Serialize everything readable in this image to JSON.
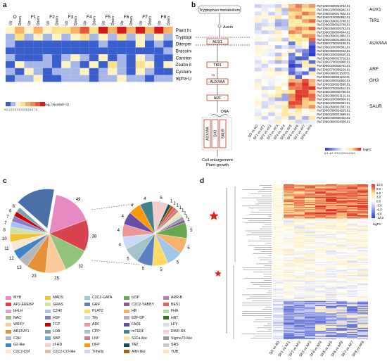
{
  "panel_labels": [
    "a",
    "b",
    "c",
    "d"
  ],
  "a": {
    "groups": [
      "O",
      "F1",
      "F2",
      "F3",
      "F4",
      "F5",
      "F6",
      "F7",
      "F8"
    ],
    "direction_labels": [
      "Up",
      "Down"
    ],
    "pathways": [
      "Plant hormone signal transduction",
      "Tryptophan metabolism",
      "Diterpenoid biosynthesis",
      "Brassinosteroid biosynthesis",
      "Carotenoid biosynthesis",
      "Zeatin biosynthesis",
      "Cysteine and methionine metabolism",
      "alpha-Linolenic acid metabolism"
    ],
    "legend_ticks": "0.0 1.0 2.0 3.0 4.0 5.0 6.0 7.0",
    "legend_title": "log₂ (Number+1)"
  },
  "b": {
    "pathway_title": "Tryptophan metabolism",
    "nodes": [
      "Auxin",
      "AUX1",
      "TIR1",
      "AUX/IAA",
      "ARF",
      "DNA",
      "AUX/IAA",
      "GH3",
      "SAUR"
    ],
    "ub": "+u",
    "outcome": [
      "Cell enlargement",
      "Plant growth"
    ],
    "gene_ids": [
      "PaF106G0600024754.01",
      "PaF106G0200009942.01",
      "PaF106G0400017932.01",
      "PaF106G0100000562.01",
      "PaF106G0500013748.01",
      "PaF106G0300013749.01",
      "PaF106G0500029753.01",
      "PaF106G0300004644.01",
      "PaF106G0500013863.01",
      "PaF106G0400013934.01",
      "PaF106G0700026198.01",
      "PaF106G0200005581.01",
      "PaF106G0800029316.01",
      "PaF106G0200026630.01",
      "PaF106G0400017716.01",
      "PaF106G0700019948.01",
      "PaF106G0200026752.01",
      "PaF106G0700009229.01",
      "PaF106G0400011828.01",
      "PaF106G0400031102.01",
      "PaF106G0400016604.01",
      "PaF106G0200023590.01",
      "PaF106G0700026812.01",
      "PaF106G0300030766.01",
      "PaF106G0800013121.01",
      "PaF106G0200008604.01",
      "PaF106G0200009391.01",
      "PaF106G0500031587.01",
      "PaF106G0300014203.01",
      "PaF106G0200031599.01",
      "PaF106G0400035402.01",
      "PaF106G0600024309.01"
    ],
    "gene_groups": [
      "AUX1",
      "TIR1",
      "AUX/IAA",
      "ARF",
      "GH3",
      "SAUR"
    ],
    "columns": [
      "SO vs AO",
      "SF1 vs AF1",
      "SF2 vs AF2",
      "SF3 vs AF3",
      "SF4 vs AF4",
      "SF5 vs AF5",
      "SF6 vs AF6",
      "SF7 vs AF7",
      "SF8 vs AF8"
    ],
    "legend_ticks": "-6.0 -4.0 -2.0 0.0 2.0 4.0 6.0",
    "legend_title": "logFC"
  },
  "c": {
    "left_pie_labels": [
      "49",
      "38",
      "32",
      "25",
      "23",
      "13",
      "12",
      "11",
      "10",
      "8",
      "7",
      "7",
      "6",
      "6"
    ],
    "right_pie_labels": [
      "5",
      "5",
      "5",
      "5",
      "5",
      "5",
      "4",
      "4",
      "4",
      "4",
      "4",
      "5",
      "1",
      "1",
      "1",
      "1",
      "1",
      "1",
      "1",
      "1"
    ],
    "legend": [
      {
        "name": "MYB",
        "color": "#e78ac3"
      },
      {
        "name": "MADS",
        "color": "#f1c232"
      },
      {
        "name": "C2C2-GATA",
        "color": "#9fc5e8"
      },
      {
        "name": "bZIP",
        "color": "#6aa84f"
      },
      {
        "name": "ARR-B",
        "color": "#c27ba0"
      },
      {
        "name": "AP2-EREBP",
        "color": "#d9434f"
      },
      {
        "name": "GRAS",
        "color": "#cfe2a0"
      },
      {
        "name": "GRF",
        "color": "#5b7fbf"
      },
      {
        "name": "C2C2-YABBY",
        "color": "#8a5a9e"
      },
      {
        "name": "BES1",
        "color": "#e06666"
      },
      {
        "name": "bHLH",
        "color": "#d5a6bd"
      },
      {
        "name": "C2H2",
        "color": "#a4c2f4"
      },
      {
        "name": "PLATZ",
        "color": "#ffd966"
      },
      {
        "name": "HB",
        "color": "#f6b26b"
      },
      {
        "name": "FHA",
        "color": "#b6d7a8"
      },
      {
        "name": "NAC",
        "color": "#93c47d"
      },
      {
        "name": "HSF",
        "color": "#8e7cc3"
      },
      {
        "name": "Tify",
        "color": "#c9daf8"
      },
      {
        "name": "E2F-DP",
        "color": "#b4a7d6"
      },
      {
        "name": "HRT",
        "color": "#38761d"
      },
      {
        "name": "WRKY",
        "color": "#f9cb9c"
      },
      {
        "name": "TCP",
        "color": "#cc0000"
      },
      {
        "name": "ARF",
        "color": "#ea9999"
      },
      {
        "name": "FAR1",
        "color": "#674ea7"
      },
      {
        "name": "LFY",
        "color": "#d0e0e3"
      },
      {
        "name": "AB13VP1",
        "color": "#e69138"
      },
      {
        "name": "LOB",
        "color": "#76a5af"
      },
      {
        "name": "CPP",
        "color": "#a2c4c9"
      },
      {
        "name": "mTERF",
        "color": "#45818e"
      },
      {
        "name": "RWP-RK",
        "color": "#ead1dc"
      },
      {
        "name": "C3H",
        "color": "#b7b7b7"
      },
      {
        "name": "SBP",
        "color": "#6fa8dc"
      },
      {
        "name": "LIM",
        "color": "#c27ba0"
      },
      {
        "name": "S1Fa-like",
        "color": "#ffe599"
      },
      {
        "name": "Sigma70-like",
        "color": "#999999"
      },
      {
        "name": "G2-like",
        "color": "#3d85c6"
      },
      {
        "name": "zf-HD",
        "color": "#f4cccc"
      },
      {
        "name": "OFP",
        "color": "#ff9900"
      },
      {
        "name": "TAZ",
        "color": "#134f5c"
      },
      {
        "name": "SRS",
        "color": "#cccccc"
      },
      {
        "name": "C2C2-Dof",
        "color": "#fce5cd"
      },
      {
        "name": "C2C2-CO-like",
        "color": "#e6b8af"
      },
      {
        "name": "Trihelix",
        "color": "#d9d2e9"
      },
      {
        "name": "Alfin-like",
        "color": "#b45f06"
      },
      {
        "name": "TUB",
        "color": "#ffe0b2"
      }
    ]
  },
  "d": {
    "columns": [
      "SO vs AO",
      "SF1 vs AF1",
      "SF2 vs AF2",
      "SF3 vs AF3",
      "SF4 vs AF4",
      "SF5 vs AF5",
      "SF6 vs AF6",
      "SF7 vs AF7",
      "SF8 vs AF8"
    ],
    "legend_ticks": [
      "12.0",
      "9.0",
      "6.0",
      "3.0",
      "0.0",
      "-3.0",
      "-6.0",
      "-9.0",
      "-12.0"
    ],
    "legend_title": "logFC"
  }
}
